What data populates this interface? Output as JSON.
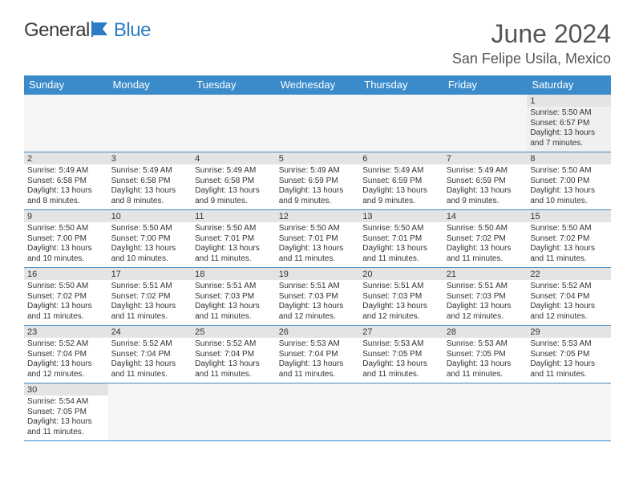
{
  "brand": {
    "name_part1": "General",
    "name_part2": "Blue"
  },
  "title": "June 2024",
  "location": "San Felipe Usila, Mexico",
  "colors": {
    "header_bg": "#3b8bca",
    "header_text": "#ffffff",
    "daynum_bg": "#e4e4e4",
    "grid_line": "#3b8bca",
    "text": "#333333",
    "title_text": "#555555"
  },
  "weekdays": [
    "Sunday",
    "Monday",
    "Tuesday",
    "Wednesday",
    "Thursday",
    "Friday",
    "Saturday"
  ],
  "weeks": [
    {
      "nums": [
        "",
        "",
        "",
        "",
        "",
        "",
        "1"
      ],
      "cells": [
        null,
        null,
        null,
        null,
        null,
        null,
        {
          "sunrise": "Sunrise: 5:50 AM",
          "sunset": "Sunset: 6:57 PM",
          "day1": "Daylight: 13 hours",
          "day2": "and 7 minutes."
        }
      ]
    },
    {
      "nums": [
        "2",
        "3",
        "4",
        "5",
        "6",
        "7",
        "8"
      ],
      "cells": [
        {
          "sunrise": "Sunrise: 5:49 AM",
          "sunset": "Sunset: 6:58 PM",
          "day1": "Daylight: 13 hours",
          "day2": "and 8 minutes."
        },
        {
          "sunrise": "Sunrise: 5:49 AM",
          "sunset": "Sunset: 6:58 PM",
          "day1": "Daylight: 13 hours",
          "day2": "and 8 minutes."
        },
        {
          "sunrise": "Sunrise: 5:49 AM",
          "sunset": "Sunset: 6:58 PM",
          "day1": "Daylight: 13 hours",
          "day2": "and 9 minutes."
        },
        {
          "sunrise": "Sunrise: 5:49 AM",
          "sunset": "Sunset: 6:59 PM",
          "day1": "Daylight: 13 hours",
          "day2": "and 9 minutes."
        },
        {
          "sunrise": "Sunrise: 5:49 AM",
          "sunset": "Sunset: 6:59 PM",
          "day1": "Daylight: 13 hours",
          "day2": "and 9 minutes."
        },
        {
          "sunrise": "Sunrise: 5:49 AM",
          "sunset": "Sunset: 6:59 PM",
          "day1": "Daylight: 13 hours",
          "day2": "and 9 minutes."
        },
        {
          "sunrise": "Sunrise: 5:50 AM",
          "sunset": "Sunset: 7:00 PM",
          "day1": "Daylight: 13 hours",
          "day2": "and 10 minutes."
        }
      ]
    },
    {
      "nums": [
        "9",
        "10",
        "11",
        "12",
        "13",
        "14",
        "15"
      ],
      "cells": [
        {
          "sunrise": "Sunrise: 5:50 AM",
          "sunset": "Sunset: 7:00 PM",
          "day1": "Daylight: 13 hours",
          "day2": "and 10 minutes."
        },
        {
          "sunrise": "Sunrise: 5:50 AM",
          "sunset": "Sunset: 7:00 PM",
          "day1": "Daylight: 13 hours",
          "day2": "and 10 minutes."
        },
        {
          "sunrise": "Sunrise: 5:50 AM",
          "sunset": "Sunset: 7:01 PM",
          "day1": "Daylight: 13 hours",
          "day2": "and 11 minutes."
        },
        {
          "sunrise": "Sunrise: 5:50 AM",
          "sunset": "Sunset: 7:01 PM",
          "day1": "Daylight: 13 hours",
          "day2": "and 11 minutes."
        },
        {
          "sunrise": "Sunrise: 5:50 AM",
          "sunset": "Sunset: 7:01 PM",
          "day1": "Daylight: 13 hours",
          "day2": "and 11 minutes."
        },
        {
          "sunrise": "Sunrise: 5:50 AM",
          "sunset": "Sunset: 7:02 PM",
          "day1": "Daylight: 13 hours",
          "day2": "and 11 minutes."
        },
        {
          "sunrise": "Sunrise: 5:50 AM",
          "sunset": "Sunset: 7:02 PM",
          "day1": "Daylight: 13 hours",
          "day2": "and 11 minutes."
        }
      ]
    },
    {
      "nums": [
        "16",
        "17",
        "18",
        "19",
        "20",
        "21",
        "22"
      ],
      "cells": [
        {
          "sunrise": "Sunrise: 5:50 AM",
          "sunset": "Sunset: 7:02 PM",
          "day1": "Daylight: 13 hours",
          "day2": "and 11 minutes."
        },
        {
          "sunrise": "Sunrise: 5:51 AM",
          "sunset": "Sunset: 7:02 PM",
          "day1": "Daylight: 13 hours",
          "day2": "and 11 minutes."
        },
        {
          "sunrise": "Sunrise: 5:51 AM",
          "sunset": "Sunset: 7:03 PM",
          "day1": "Daylight: 13 hours",
          "day2": "and 11 minutes."
        },
        {
          "sunrise": "Sunrise: 5:51 AM",
          "sunset": "Sunset: 7:03 PM",
          "day1": "Daylight: 13 hours",
          "day2": "and 12 minutes."
        },
        {
          "sunrise": "Sunrise: 5:51 AM",
          "sunset": "Sunset: 7:03 PM",
          "day1": "Daylight: 13 hours",
          "day2": "and 12 minutes."
        },
        {
          "sunrise": "Sunrise: 5:51 AM",
          "sunset": "Sunset: 7:03 PM",
          "day1": "Daylight: 13 hours",
          "day2": "and 12 minutes."
        },
        {
          "sunrise": "Sunrise: 5:52 AM",
          "sunset": "Sunset: 7:04 PM",
          "day1": "Daylight: 13 hours",
          "day2": "and 12 minutes."
        }
      ]
    },
    {
      "nums": [
        "23",
        "24",
        "25",
        "26",
        "27",
        "28",
        "29"
      ],
      "cells": [
        {
          "sunrise": "Sunrise: 5:52 AM",
          "sunset": "Sunset: 7:04 PM",
          "day1": "Daylight: 13 hours",
          "day2": "and 12 minutes."
        },
        {
          "sunrise": "Sunrise: 5:52 AM",
          "sunset": "Sunset: 7:04 PM",
          "day1": "Daylight: 13 hours",
          "day2": "and 11 minutes."
        },
        {
          "sunrise": "Sunrise: 5:52 AM",
          "sunset": "Sunset: 7:04 PM",
          "day1": "Daylight: 13 hours",
          "day2": "and 11 minutes."
        },
        {
          "sunrise": "Sunrise: 5:53 AM",
          "sunset": "Sunset: 7:04 PM",
          "day1": "Daylight: 13 hours",
          "day2": "and 11 minutes."
        },
        {
          "sunrise": "Sunrise: 5:53 AM",
          "sunset": "Sunset: 7:05 PM",
          "day1": "Daylight: 13 hours",
          "day2": "and 11 minutes."
        },
        {
          "sunrise": "Sunrise: 5:53 AM",
          "sunset": "Sunset: 7:05 PM",
          "day1": "Daylight: 13 hours",
          "day2": "and 11 minutes."
        },
        {
          "sunrise": "Sunrise: 5:53 AM",
          "sunset": "Sunset: 7:05 PM",
          "day1": "Daylight: 13 hours",
          "day2": "and 11 minutes."
        }
      ]
    },
    {
      "nums": [
        "30",
        "",
        "",
        "",
        "",
        "",
        ""
      ],
      "cells": [
        {
          "sunrise": "Sunrise: 5:54 AM",
          "sunset": "Sunset: 7:05 PM",
          "day1": "Daylight: 13 hours",
          "day2": "and 11 minutes."
        },
        null,
        null,
        null,
        null,
        null,
        null
      ]
    }
  ]
}
